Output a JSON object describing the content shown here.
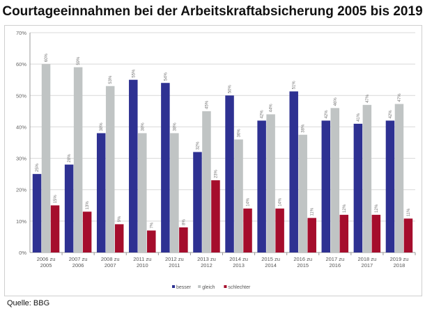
{
  "title": "Courtageeinnahmen bei der Arbeitskraftabsicherung 2005 bis 2019",
  "source": "Quelle: BBG",
  "colors": {
    "besser": "#2e3192",
    "gleich": "#c0c4c4",
    "schlechter": "#a50d2c"
  },
  "chart_data": {
    "type": "bar",
    "title": "Courtageeinnahmen bei der Arbeitskraftabsicherung 2005 bis 2019",
    "xlabel": "",
    "ylabel": "",
    "ylim": [
      0,
      70
    ],
    "yticks": [
      "0%",
      "10%",
      "20%",
      "30%",
      "40%",
      "50%",
      "60%",
      "70%"
    ],
    "grid": true,
    "legend_position": "bottom",
    "categories": [
      [
        "2006 zu",
        "2005"
      ],
      [
        "2007 zu",
        "2006"
      ],
      [
        "2008 zu",
        "2007"
      ],
      [
        "2011 zu",
        "2010"
      ],
      [
        "2012 zu",
        "2011"
      ],
      [
        "2013 zu",
        "2012"
      ],
      [
        "2014 zu",
        "2013"
      ],
      [
        "2015 zu",
        "2014"
      ],
      [
        "2016 zu",
        "2015"
      ],
      [
        "2017 zu",
        "2016"
      ],
      [
        "2018 zu",
        "2017"
      ],
      [
        "2019 zu",
        "2018"
      ]
    ],
    "series": [
      {
        "name": "besser",
        "values": [
          25,
          28,
          38,
          55,
          54,
          32,
          50,
          42,
          51.3,
          42,
          41,
          42
        ],
        "labels": [
          "25%",
          "28%",
          "38%",
          "55%",
          "54%",
          "32%",
          "50%",
          "42%",
          "51%",
          "42%",
          "41%",
          "42%"
        ]
      },
      {
        "name": "gleich",
        "values": [
          60,
          59,
          53,
          38,
          38,
          45,
          36,
          44,
          37.5,
          46,
          47,
          47.3
        ],
        "labels": [
          "60%",
          "59%",
          "53%",
          "38%",
          "38%",
          "45%",
          "36%",
          "44%",
          "38%",
          "46%",
          "47%",
          "47%"
        ]
      },
      {
        "name": "schlechter",
        "values": [
          15,
          13,
          9,
          7,
          8,
          23,
          14,
          14,
          11,
          12,
          12,
          10.8
        ],
        "labels": [
          "15%",
          "13%",
          "9%",
          "7%",
          "8%",
          "23%",
          "14%",
          "14%",
          "11%",
          "12%",
          "12%",
          "11%"
        ]
      }
    ]
  }
}
